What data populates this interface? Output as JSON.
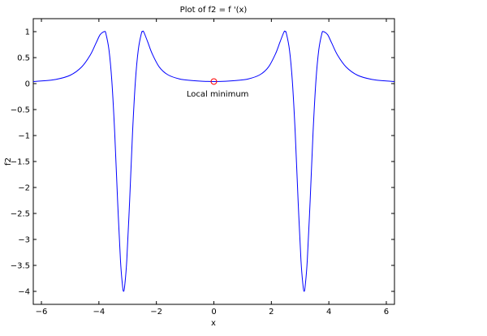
{
  "chart_data": {
    "type": "line",
    "title": "Plot of f2 = f '(x)",
    "xlabel": "x",
    "ylabel": "f2",
    "xlim": [
      -6.2832,
      6.2832
    ],
    "ylim": [
      -4.25,
      1.25
    ],
    "xticks": [
      -6,
      -4,
      -2,
      0,
      2,
      4,
      6
    ],
    "xtick_labels": [
      "−6",
      "−4",
      "−2",
      "0",
      "2",
      "4",
      "6"
    ],
    "yticks": [
      1,
      0.5,
      0,
      -0.5,
      -1,
      -1.5,
      -2,
      -2.5,
      -3,
      -3.5,
      -4
    ],
    "ytick_labels": [
      "1",
      "0.5",
      "0",
      "−0.5",
      "−1",
      "−1.5",
      "−2",
      "−2.5",
      "−3",
      "−3.5",
      "−4"
    ],
    "grid": false,
    "series": [
      {
        "color": "#0000ff",
        "x": [
          -6.2832,
          -6.0,
          -5.5,
          -5.0,
          -4.6,
          -4.3,
          -4.1,
          -3.96,
          -3.84,
          -3.8,
          -3.76,
          -3.65,
          -3.55,
          -3.45,
          -3.35,
          -3.25,
          -3.18,
          -3.1416,
          -3.1,
          -3.03,
          -2.93,
          -2.83,
          -2.73,
          -2.63,
          -2.52,
          -2.48,
          -2.44,
          -2.3,
          -2.15,
          -1.9,
          -1.6,
          -1.2,
          -0.8,
          -0.4,
          0.0,
          0.4,
          0.8,
          1.2,
          1.6,
          1.9,
          2.15,
          2.3,
          2.44,
          2.48,
          2.52,
          2.63,
          2.73,
          2.83,
          2.93,
          3.03,
          3.1,
          3.1416,
          3.18,
          3.25,
          3.35,
          3.45,
          3.55,
          3.65,
          3.76,
          3.8,
          3.84,
          3.96,
          4.1,
          4.3,
          4.6,
          5.0,
          5.5,
          6.0,
          6.2832
        ],
        "y": [
          0.04,
          0.05,
          0.08,
          0.16,
          0.32,
          0.55,
          0.78,
          0.94,
          0.995,
          1.0,
          0.97,
          0.65,
          0.05,
          -0.95,
          -2.25,
          -3.4,
          -3.88,
          -4.0,
          -3.88,
          -3.4,
          -2.25,
          -0.95,
          0.05,
          0.65,
          0.97,
          1.0,
          0.995,
          0.8,
          0.58,
          0.32,
          0.17,
          0.09,
          0.06,
          0.045,
          0.04,
          0.045,
          0.06,
          0.09,
          0.17,
          0.32,
          0.58,
          0.8,
          0.995,
          1.0,
          0.97,
          0.65,
          0.05,
          -0.95,
          -2.25,
          -3.4,
          -3.88,
          -4.0,
          -3.88,
          -3.4,
          -2.25,
          -0.95,
          0.05,
          0.65,
          0.97,
          1.0,
          0.995,
          0.94,
          0.78,
          0.55,
          0.32,
          0.16,
          0.08,
          0.05,
          0.04
        ]
      }
    ],
    "markers": [
      {
        "x": 0,
        "y": 0.04,
        "color": "#ff0000",
        "shape": "circle"
      }
    ],
    "annotations": [
      {
        "text": "Local minimum",
        "x": -0.95,
        "y": -0.25
      }
    ]
  }
}
